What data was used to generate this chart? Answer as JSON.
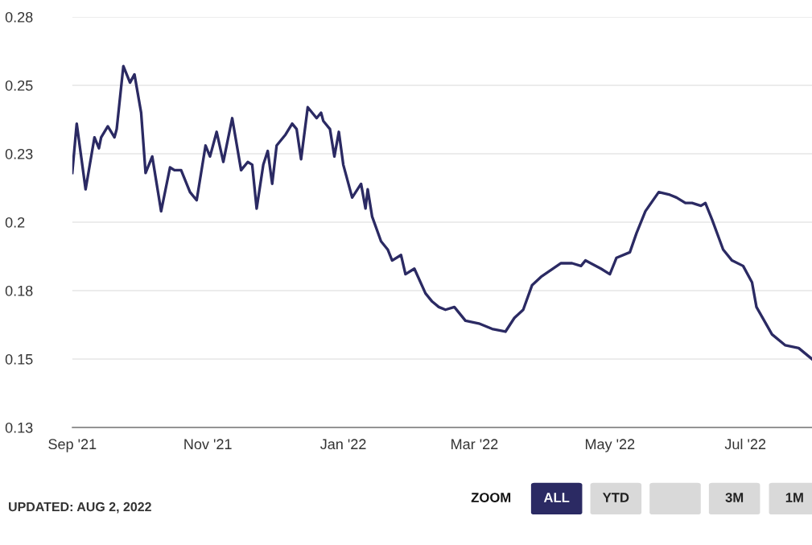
{
  "chart_data": {
    "type": "line",
    "x": [
      "2021-09-01",
      "2021-09-03",
      "2021-09-07",
      "2021-09-11",
      "2021-09-13",
      "2021-09-14",
      "2021-09-17",
      "2021-09-20",
      "2021-09-21",
      "2021-09-24",
      "2021-09-27",
      "2021-09-29",
      "2021-10-02",
      "2021-10-04",
      "2021-10-07",
      "2021-10-11",
      "2021-10-15",
      "2021-10-17",
      "2021-10-20",
      "2021-10-24",
      "2021-10-27",
      "2021-10-31",
      "2021-11-02",
      "2021-11-05",
      "2021-11-08",
      "2021-11-12",
      "2021-11-16",
      "2021-11-19",
      "2021-11-21",
      "2021-11-23",
      "2021-11-26",
      "2021-11-28",
      "2021-11-30",
      "2021-12-02",
      "2021-12-04",
      "2021-12-06",
      "2021-12-09",
      "2021-12-11",
      "2021-12-13",
      "2021-12-16",
      "2021-12-20",
      "2021-12-22",
      "2021-12-23",
      "2021-12-26",
      "2021-12-28",
      "2021-12-30",
      "2022-01-01",
      "2022-01-05",
      "2022-01-09",
      "2022-01-11",
      "2022-01-12",
      "2022-01-14",
      "2022-01-18",
      "2022-01-21",
      "2022-01-23",
      "2022-01-27",
      "2022-01-29",
      "2022-02-02",
      "2022-02-07",
      "2022-02-10",
      "2022-02-13",
      "2022-02-16",
      "2022-02-20",
      "2022-02-25",
      "2022-03-03",
      "2022-03-09",
      "2022-03-15",
      "2022-03-19",
      "2022-03-23",
      "2022-03-27",
      "2022-03-31",
      "2022-04-09",
      "2022-04-14",
      "2022-04-18",
      "2022-04-20",
      "2022-04-27",
      "2022-05-01",
      "2022-05-04",
      "2022-05-10",
      "2022-05-13",
      "2022-05-17",
      "2022-05-23",
      "2022-05-28",
      "2022-05-31",
      "2022-06-04",
      "2022-06-07",
      "2022-06-11",
      "2022-06-13",
      "2022-06-16",
      "2022-06-21",
      "2022-06-25",
      "2022-06-30",
      "2022-07-04",
      "2022-07-06",
      "2022-07-13",
      "2022-07-19",
      "2022-07-25",
      "2022-07-31"
    ],
    "series": [
      {
        "color": "#2b2a63",
        "values": [
          0.218,
          0.236,
          0.212,
          0.231,
          0.227,
          0.231,
          0.235,
          0.231,
          0.234,
          0.257,
          0.251,
          0.254,
          0.24,
          0.218,
          0.224,
          0.204,
          0.22,
          0.219,
          0.219,
          0.211,
          0.208,
          0.228,
          0.224,
          0.233,
          0.222,
          0.238,
          0.219,
          0.222,
          0.221,
          0.205,
          0.221,
          0.226,
          0.214,
          0.228,
          0.23,
          0.232,
          0.236,
          0.234,
          0.223,
          0.242,
          0.238,
          0.24,
          0.237,
          0.234,
          0.224,
          0.233,
          0.221,
          0.209,
          0.214,
          0.205,
          0.212,
          0.202,
          0.193,
          0.19,
          0.186,
          0.188,
          0.181,
          0.183,
          0.174,
          0.171,
          0.169,
          0.168,
          0.169,
          0.164,
          0.163,
          0.161,
          0.16,
          0.165,
          0.168,
          0.177,
          0.18,
          0.185,
          0.185,
          0.184,
          0.186,
          0.183,
          0.181,
          0.187,
          0.189,
          0.196,
          0.204,
          0.211,
          0.21,
          0.209,
          0.207,
          0.207,
          0.206,
          0.207,
          0.201,
          0.19,
          0.186,
          0.184,
          0.178,
          0.169,
          0.159,
          0.155,
          0.154,
          0.15
        ]
      }
    ],
    "xlim": [
      "2021-09-01",
      "2022-07-31"
    ],
    "xticks": [
      {
        "value": "2021-09-01",
        "label": "Sep '21"
      },
      {
        "value": "2021-11-01",
        "label": "Nov '21"
      },
      {
        "value": "2022-01-01",
        "label": "Jan '22"
      },
      {
        "value": "2022-03-01",
        "label": "Mar '22"
      },
      {
        "value": "2022-05-01",
        "label": "May '22"
      },
      {
        "value": "2022-07-01",
        "label": "Jul '22"
      }
    ],
    "ylim": [
      0.125,
      0.275
    ],
    "yticks": [
      {
        "value": 0.125,
        "label": "0.13"
      },
      {
        "value": 0.15,
        "label": "0.15"
      },
      {
        "value": 0.175,
        "label": "0.18"
      },
      {
        "value": 0.2,
        "label": "0.2"
      },
      {
        "value": 0.225,
        "label": "0.23"
      },
      {
        "value": 0.25,
        "label": "0.25"
      },
      {
        "value": 0.275,
        "label": "0.28"
      }
    ],
    "grid": "y",
    "legend": false,
    "marker": "none",
    "line_style": "solid",
    "annotations": [
      "UPDATED: AUG 2, 2022",
      "ZOOM",
      "ALL",
      "YTD",
      "3M",
      "1M"
    ]
  }
}
